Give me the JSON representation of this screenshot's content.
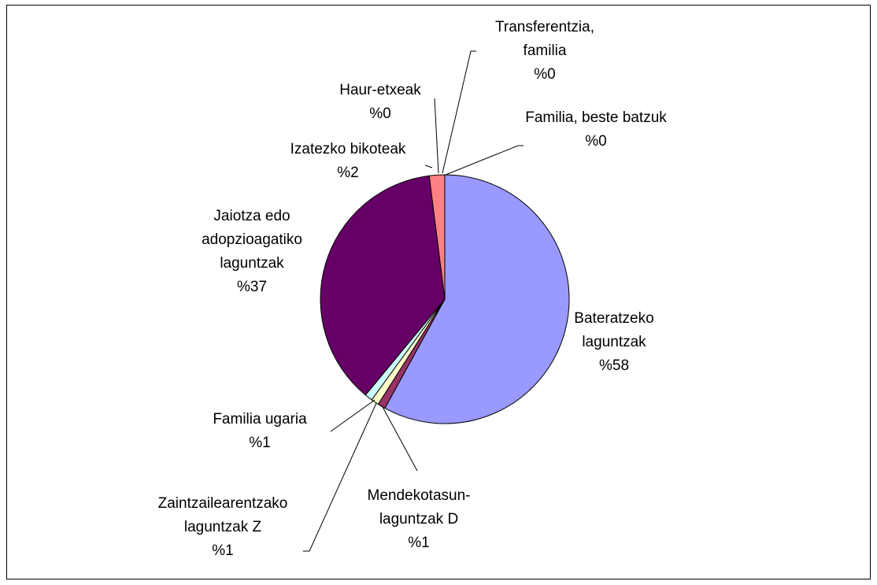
{
  "chart_data": {
    "type": "pie",
    "categories": [
      "Bateratzeko laguntzak",
      "Mendekotasun-laguntzak D",
      "Zaintzailearentzako laguntzak Z",
      "Familia ugaria",
      "Jaiotza edo adopzioagatiko laguntzak",
      "Izatezko bikoteak",
      "Haur-etxeak",
      "Transferentzia, familia",
      "Familia, beste batzuk"
    ],
    "values": [
      58,
      1,
      1,
      1,
      37,
      2,
      0,
      0,
      0
    ],
    "value_labels": [
      "%58",
      "%1",
      "%1",
      "%1",
      "%37",
      "%2",
      "%0",
      "%0",
      "%0"
    ],
    "colors": [
      "#9999ff",
      "#993366",
      "#ffffcc",
      "#ccffff",
      "#660066",
      "#ff8080",
      "#0066cc",
      "#ccccff",
      "#000080"
    ]
  }
}
